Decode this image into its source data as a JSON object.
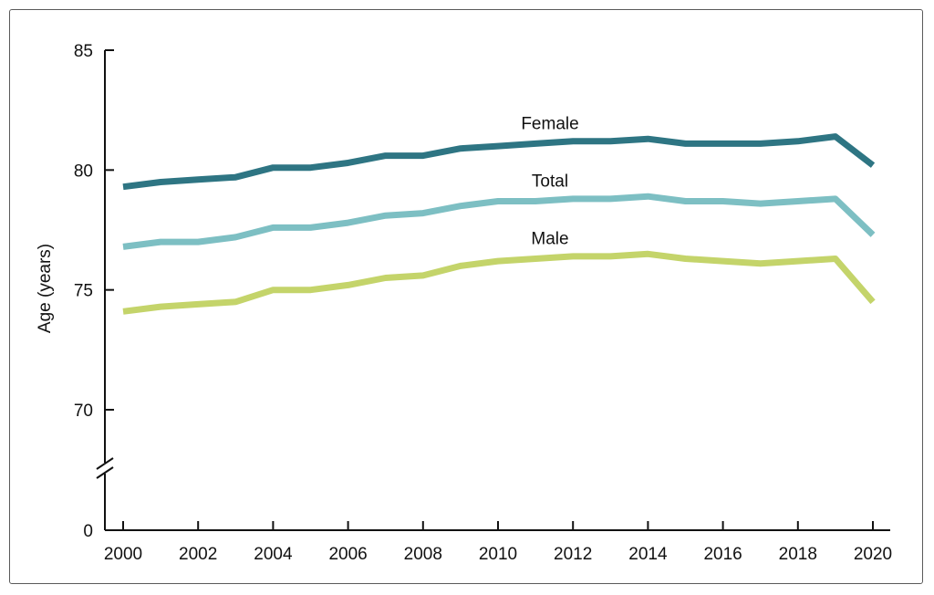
{
  "chart_data": {
    "type": "line",
    "title": "",
    "xlabel": "",
    "ylabel": "Age (years)",
    "x": [
      2000,
      2001,
      2002,
      2003,
      2004,
      2005,
      2006,
      2007,
      2008,
      2009,
      2010,
      2011,
      2012,
      2013,
      2014,
      2015,
      2016,
      2017,
      2018,
      2019,
      2020
    ],
    "xticks": [
      "2000",
      "2002",
      "2004",
      "2006",
      "2008",
      "2010",
      "2012",
      "2014",
      "2016",
      "2018",
      "2020"
    ],
    "yticks": [
      "0",
      "70",
      "75",
      "80",
      "85"
    ],
    "ylim": [
      70,
      85
    ],
    "y_axis_break": true,
    "grid": false,
    "series": [
      {
        "name": "Female",
        "color": "#2e7583",
        "values": [
          79.3,
          79.5,
          79.6,
          79.7,
          80.1,
          80.1,
          80.3,
          80.6,
          80.6,
          80.9,
          81.0,
          81.1,
          81.2,
          81.2,
          81.3,
          81.1,
          81.1,
          81.1,
          81.2,
          81.4,
          80.2
        ]
      },
      {
        "name": "Total",
        "color": "#7dbfc3",
        "values": [
          76.8,
          77.0,
          77.0,
          77.2,
          77.6,
          77.6,
          77.8,
          78.1,
          78.2,
          78.5,
          78.7,
          78.7,
          78.8,
          78.8,
          78.9,
          78.7,
          78.7,
          78.6,
          78.7,
          78.8,
          77.3
        ]
      },
      {
        "name": "Male",
        "color": "#c4d46a",
        "values": [
          74.1,
          74.3,
          74.4,
          74.5,
          75.0,
          75.0,
          75.2,
          75.5,
          75.6,
          76.0,
          76.2,
          76.3,
          76.4,
          76.4,
          76.5,
          76.3,
          76.2,
          76.1,
          76.2,
          76.3,
          74.5
        ]
      }
    ]
  }
}
